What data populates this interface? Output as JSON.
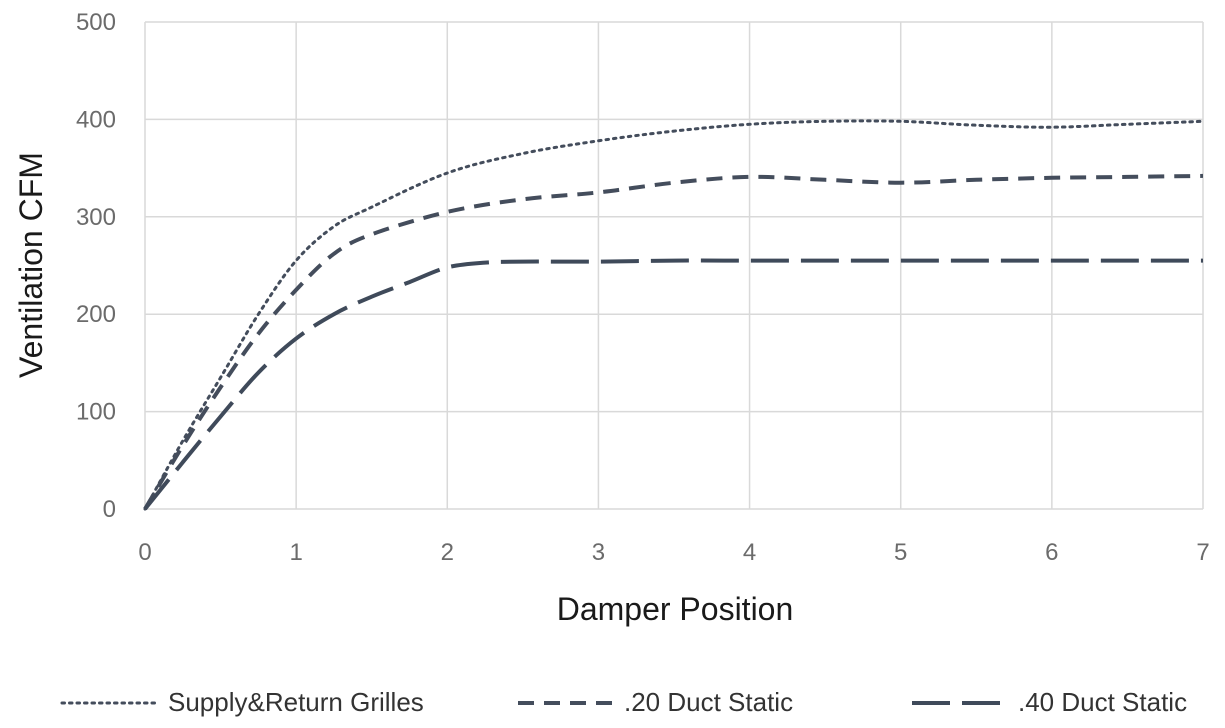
{
  "chart_data": {
    "type": "line",
    "title": "",
    "xlabel": "Damper Position",
    "ylabel": "Ventilation CFM",
    "xlim": [
      0,
      7
    ],
    "ylim": [
      0,
      500
    ],
    "x_ticks": [
      "0",
      "1",
      "2",
      "3",
      "4",
      "5",
      "6",
      "7"
    ],
    "y_ticks": [
      "0",
      "100",
      "200",
      "300",
      "400",
      "500"
    ],
    "grid": true,
    "legend_position": "bottom",
    "series": [
      {
        "name": "Supply&Return Grilles",
        "style": "dotted",
        "color": "#444d5c",
        "x": [
          0,
          0.25,
          0.5,
          0.75,
          1,
          1.25,
          1.5,
          2,
          2.5,
          3,
          3.5,
          4,
          4.5,
          5,
          5.5,
          6,
          6.5,
          7
        ],
        "y": [
          0,
          70,
          135,
          200,
          255,
          290,
          310,
          345,
          365,
          378,
          388,
          395,
          398,
          398,
          394,
          392,
          395,
          398
        ]
      },
      {
        "name": ".20 Duct Static",
        "style": "dashed",
        "color": "#444d5c",
        "x": [
          0,
          0.25,
          0.5,
          0.75,
          1,
          1.25,
          1.5,
          2,
          2.5,
          3,
          3.5,
          4,
          4.5,
          5,
          5.5,
          6,
          6.5,
          7
        ],
        "y": [
          0,
          65,
          125,
          180,
          225,
          262,
          282,
          305,
          318,
          325,
          335,
          341,
          338,
          335,
          338,
          340,
          341,
          342
        ]
      },
      {
        "name": ".40 Duct Static",
        "style": "long-dashed",
        "color": "#3f4a5a",
        "x": [
          0,
          0.25,
          0.5,
          0.75,
          1,
          1.25,
          1.5,
          1.75,
          2,
          2.25,
          2.5,
          3,
          3.5,
          4,
          4.5,
          5,
          5.5,
          6,
          6.5,
          7
        ],
        "y": [
          0,
          48,
          95,
          140,
          175,
          200,
          218,
          233,
          248,
          253,
          254,
          254,
          255,
          255,
          255,
          255,
          255,
          255,
          255,
          255
        ]
      }
    ]
  }
}
